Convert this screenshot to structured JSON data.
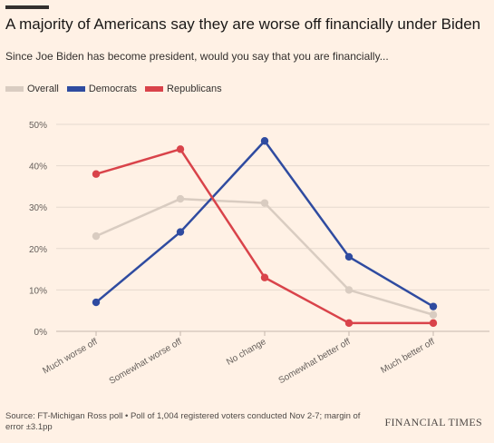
{
  "header": {
    "title": "A majority of Americans say they are worse off financially under Biden",
    "subtitle": "Since Joe Biden has become president, would you say that you are financially..."
  },
  "footer": {
    "source": "Source: FT-Michigan Ross poll • Poll of 1,004 registered voters conducted Nov 2-7; margin of error ±3.1pp",
    "brand": "FINANCIAL TIMES"
  },
  "chart_data": {
    "type": "line",
    "title": "A majority of Americans say they are worse off financially under Biden",
    "subtitle": "Since Joe Biden has become president, would you say that you are financially...",
    "categories": [
      "Much worse off",
      "Somewhat worse off",
      "No change",
      "Somewhat better off",
      "Much better off"
    ],
    "y_ticks": [
      "50%",
      "40%",
      "30%",
      "20%",
      "10%",
      "0%"
    ],
    "ylim": [
      0,
      50
    ],
    "y_unit": "%",
    "grid": true,
    "legend_position": "top-left",
    "series": [
      {
        "name": "Overall",
        "color": "#D9CCC1",
        "values": [
          23,
          32,
          31,
          10,
          4
        ]
      },
      {
        "name": "Democrats",
        "color": "#2F4BA0",
        "values": [
          7,
          24,
          46,
          18,
          6
        ]
      },
      {
        "name": "Republicans",
        "color": "#D9434A",
        "values": [
          38,
          44,
          13,
          2,
          2
        ]
      }
    ]
  }
}
